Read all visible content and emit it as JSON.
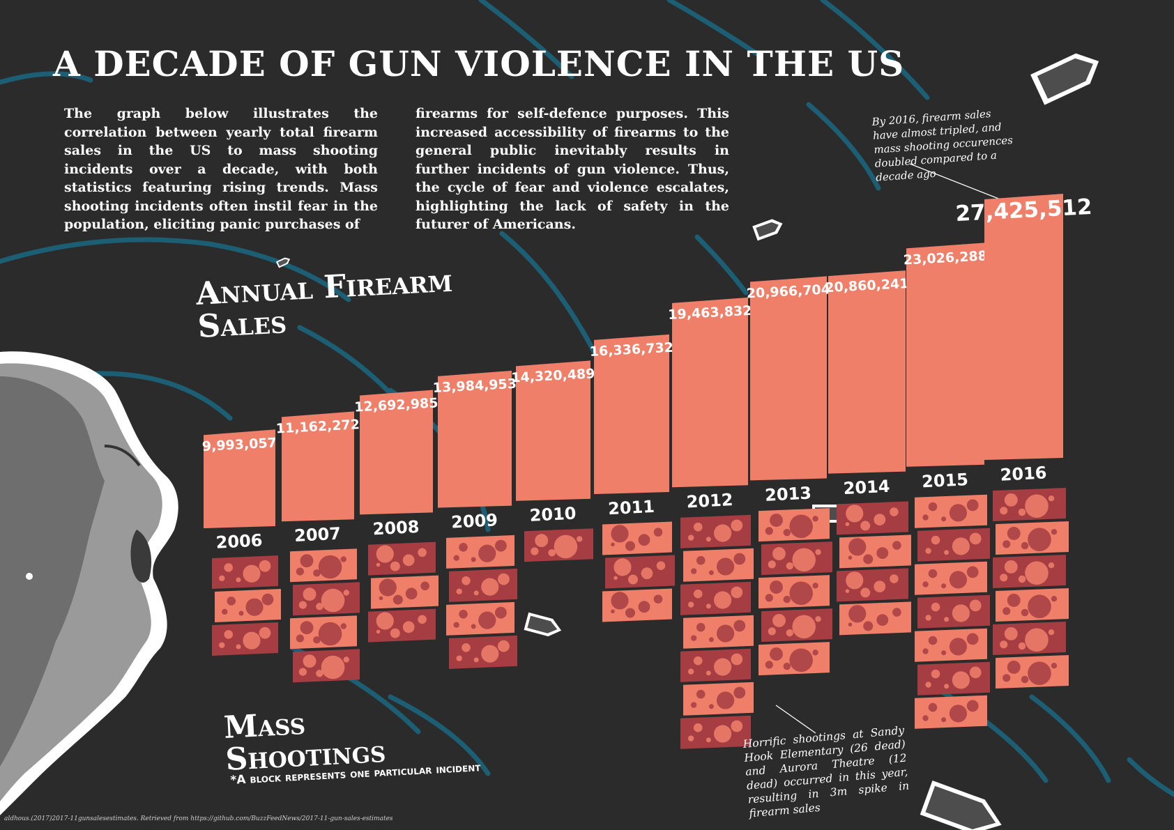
{
  "title": "A DECADE OF GUN VIOLENCE  IN THE US",
  "intro": {
    "left": "The graph below illustrates the correlation between yearly total firearm sales in the US to mass shooting incidents over a decade, with both statistics featuring rising trends. Mass shooting incidents often instil fear in the population, eliciting panic purchases of",
    "right": "firearms for self-defence purposes. This increased accessibility of firearms to the general public inevitably results in further incidents of gun violence. Thus, the cycle of fear and violence escalates, highlighting the lack of safety in the futurer of Americans."
  },
  "labels": {
    "sales": "Annual Firearm Sales",
    "shootings": "Mass Shootings",
    "shootings_note": "*A block represents one particular incident"
  },
  "annotations": {
    "y2016": "By 2016, firearm sales have almost tripled, and mass shooting occurences doubled compared to a decade ago",
    "y2012": "Horrific shootings at Sandy Hook Elementary (26 dead) and Aurora Theatre (12 dead) occurred in this year, resulting in  3m spike in firearm sales"
  },
  "source": "aldhous.(2017)2017-11gunsalesestimates. Retrieved from https://github.com/BuzzFeedNews/2017-11-gun-sales-estimates",
  "colors": {
    "background": "#2b2b2b",
    "sales_bar": "#f07f6a",
    "block_dark": "#a53d42",
    "block_light": "#f07f6a",
    "swirl": "#1c5e73"
  },
  "chart_data": [
    {
      "type": "bar",
      "title": "Annual Firearm Sales",
      "categories": [
        "2006",
        "2007",
        "2008",
        "2009",
        "2010",
        "2011",
        "2012",
        "2013",
        "2014",
        "2015",
        "2016"
      ],
      "values": [
        9993057,
        11162272,
        12692985,
        13984953,
        14320489,
        16336732,
        19463832,
        20966704,
        20860241,
        23026288,
        27425512
      ],
      "value_labels": [
        "9,993,057",
        "11,162,272",
        "12,692,985",
        "13,984,953",
        "14,320,489",
        "16,336,732",
        "19,463,832",
        "20,966,704",
        "20,860,241",
        "23,026,288",
        "27,425,512"
      ]
    },
    {
      "type": "bar",
      "title": "Mass Shootings",
      "categories": [
        "2006",
        "2007",
        "2008",
        "2009",
        "2010",
        "2011",
        "2012",
        "2013",
        "2014",
        "2015",
        "2016"
      ],
      "values": [
        3,
        4,
        3,
        4,
        1,
        3,
        7,
        5,
        4,
        7,
        6
      ],
      "note": "*A block represents one particular incident"
    }
  ]
}
